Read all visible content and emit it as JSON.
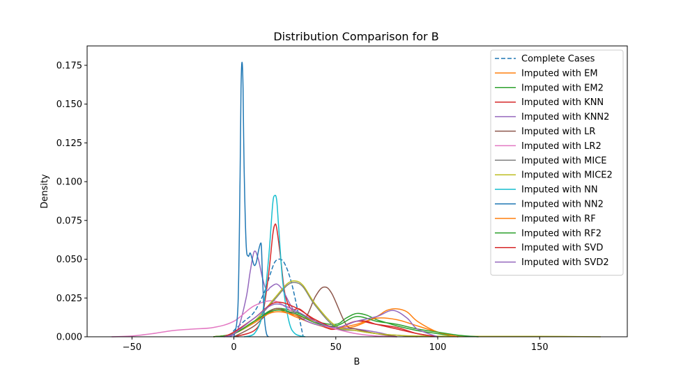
{
  "chart_data": {
    "type": "line",
    "title": "Distribution Comparison for B",
    "xlabel": "B",
    "ylabel": "Density",
    "xlim": [
      -72,
      193
    ],
    "ylim": [
      0,
      0.1875
    ],
    "xticks": [
      -50,
      0,
      50,
      100,
      150
    ],
    "xtick_labels": [
      "−50",
      "0",
      "50",
      "100",
      "150"
    ],
    "yticks": [
      0,
      0.025,
      0.05,
      0.075,
      0.1,
      0.125,
      0.15,
      0.175
    ],
    "ytick_labels": [
      "0.000",
      "0.025",
      "0.050",
      "0.075",
      "0.100",
      "0.125",
      "0.150",
      "0.175"
    ],
    "grid": false,
    "legend_position": "top-right",
    "series": [
      {
        "name": "Complete Cases",
        "color": "#1f77b4",
        "dashed": true,
        "x": [
          -2,
          0,
          5,
          10,
          15,
          18,
          20,
          22,
          24,
          26,
          28,
          30,
          34
        ],
        "y": [
          0,
          0.004,
          0.01,
          0.016,
          0.029,
          0.041,
          0.048,
          0.05,
          0.049,
          0.044,
          0.036,
          0.025,
          0
        ]
      },
      {
        "name": "Imputed with EM",
        "color": "#ff7f0e",
        "x": [
          -10,
          0,
          10,
          20,
          25,
          30,
          40,
          50,
          60,
          70,
          75,
          80,
          85,
          90,
          100,
          110
        ],
        "y": [
          0,
          0.002,
          0.009,
          0.017,
          0.016,
          0.013,
          0.008,
          0.005,
          0.007,
          0.013,
          0.017,
          0.018,
          0.016,
          0.01,
          0.003,
          0
        ]
      },
      {
        "name": "Imputed with EM2",
        "color": "#2ca02c",
        "x": [
          -10,
          0,
          10,
          20,
          30,
          40,
          50,
          55,
          60,
          65,
          70,
          75,
          80,
          90,
          100,
          110
        ],
        "y": [
          0,
          0.002,
          0.01,
          0.018,
          0.016,
          0.01,
          0.008,
          0.012,
          0.015,
          0.014,
          0.011,
          0.009,
          0.007,
          0.004,
          0.002,
          0
        ]
      },
      {
        "name": "Imputed with KNN",
        "color": "#d62728",
        "x": [
          0,
          10,
          14,
          17,
          19,
          20,
          21,
          23,
          25,
          28,
          32,
          36,
          40,
          45,
          50,
          60,
          70,
          80,
          90,
          100
        ],
        "y": [
          0,
          0.004,
          0.014,
          0.04,
          0.065,
          0.072,
          0.07,
          0.05,
          0.028,
          0.018,
          0.018,
          0.014,
          0.01,
          0.006,
          0.005,
          0.01,
          0.008,
          0.006,
          0.002,
          0
        ]
      },
      {
        "name": "Imputed with KNN2",
        "color": "#9467bd",
        "x": [
          -2,
          2,
          6,
          8,
          10,
          12,
          14,
          16,
          18,
          21,
          24,
          28,
          32,
          40,
          50,
          60,
          70,
          80
        ],
        "y": [
          0,
          0.005,
          0.025,
          0.042,
          0.055,
          0.05,
          0.038,
          0.03,
          0.032,
          0.034,
          0.03,
          0.02,
          0.013,
          0.008,
          0.006,
          0.005,
          0.003,
          0
        ]
      },
      {
        "name": "Imputed with LR",
        "color": "#8c564b",
        "x": [
          0,
          10,
          20,
          30,
          35,
          40,
          44,
          48,
          55,
          60,
          70,
          80
        ],
        "y": [
          0,
          0.007,
          0.018,
          0.014,
          0.012,
          0.026,
          0.032,
          0.028,
          0.008,
          0.005,
          0.002,
          0
        ]
      },
      {
        "name": "Imputed with LR2",
        "color": "#e377c2",
        "x": [
          -60,
          -50,
          -40,
          -30,
          -20,
          -10,
          0,
          10,
          20,
          30,
          40,
          50,
          60,
          70,
          80
        ],
        "y": [
          0,
          0.0005,
          0.002,
          0.004,
          0.005,
          0.006,
          0.01,
          0.02,
          0.023,
          0.015,
          0.009,
          0.005,
          0.002,
          0.0005,
          0
        ]
      },
      {
        "name": "Imputed with MICE",
        "color": "#7f7f7f",
        "x": [
          -10,
          0,
          10,
          20,
          26,
          30,
          34,
          40,
          50,
          60,
          70,
          80,
          90
        ],
        "y": [
          0,
          0.002,
          0.01,
          0.024,
          0.033,
          0.035,
          0.032,
          0.02,
          0.006,
          0.004,
          0.002,
          0.001,
          0
        ]
      },
      {
        "name": "Imputed with MICE2",
        "color": "#bcbd22",
        "x": [
          -10,
          0,
          10,
          20,
          26,
          30,
          34,
          40,
          50,
          60,
          70,
          80,
          90,
          120,
          150,
          180
        ],
        "y": [
          0,
          0.002,
          0.01,
          0.025,
          0.034,
          0.036,
          0.033,
          0.021,
          0.007,
          0.004,
          0.002,
          0.001,
          0.0005,
          0.0003,
          0.0003,
          0
        ]
      },
      {
        "name": "Imputed with NN",
        "color": "#17becf",
        "x": [
          5,
          10,
          14,
          17,
          19,
          20,
          21,
          22,
          24,
          27,
          30,
          35
        ],
        "y": [
          0,
          0.002,
          0.015,
          0.05,
          0.085,
          0.091,
          0.088,
          0.07,
          0.035,
          0.01,
          0.002,
          0
        ]
      },
      {
        "name": "Imputed with NN2",
        "color": "#1f77b4",
        "x": [
          0,
          2,
          3,
          3.5,
          4,
          4.5,
          5,
          6,
          7,
          8,
          9,
          10,
          11,
          12,
          13,
          13.5,
          14,
          15,
          16,
          17
        ],
        "y": [
          0,
          0.02,
          0.1,
          0.16,
          0.177,
          0.16,
          0.11,
          0.06,
          0.052,
          0.054,
          0.05,
          0.046,
          0.048,
          0.055,
          0.06,
          0.058,
          0.04,
          0.012,
          0.002,
          0
        ]
      },
      {
        "name": "Imputed with RF",
        "color": "#ff7f0e",
        "x": [
          -10,
          0,
          10,
          20,
          30,
          40,
          50,
          60,
          70,
          80,
          90,
          100,
          110
        ],
        "y": [
          0,
          0.002,
          0.01,
          0.016,
          0.014,
          0.01,
          0.006,
          0.008,
          0.012,
          0.011,
          0.007,
          0.003,
          0
        ]
      },
      {
        "name": "Imputed with RF2",
        "color": "#2ca02c",
        "x": [
          -10,
          0,
          10,
          20,
          30,
          40,
          50,
          60,
          70,
          80,
          90,
          100,
          110,
          120
        ],
        "y": [
          0,
          0.002,
          0.01,
          0.017,
          0.015,
          0.009,
          0.007,
          0.013,
          0.01,
          0.008,
          0.005,
          0.003,
          0.001,
          0
        ]
      },
      {
        "name": "Imputed with SVD",
        "color": "#d62728",
        "x": [
          -5,
          0,
          10,
          20,
          30,
          40,
          50,
          60,
          65,
          70,
          80,
          90,
          100
        ],
        "y": [
          0,
          0.003,
          0.012,
          0.022,
          0.019,
          0.011,
          0.006,
          0.01,
          0.01,
          0.008,
          0.005,
          0.002,
          0
        ]
      },
      {
        "name": "Imputed with SVD2",
        "color": "#9467bd",
        "x": [
          -5,
          0,
          10,
          20,
          30,
          40,
          50,
          60,
          70,
          78,
          85,
          90,
          100
        ],
        "y": [
          0,
          0.002,
          0.012,
          0.021,
          0.017,
          0.01,
          0.006,
          0.01,
          0.013,
          0.017,
          0.012,
          0.005,
          0
        ]
      }
    ]
  }
}
